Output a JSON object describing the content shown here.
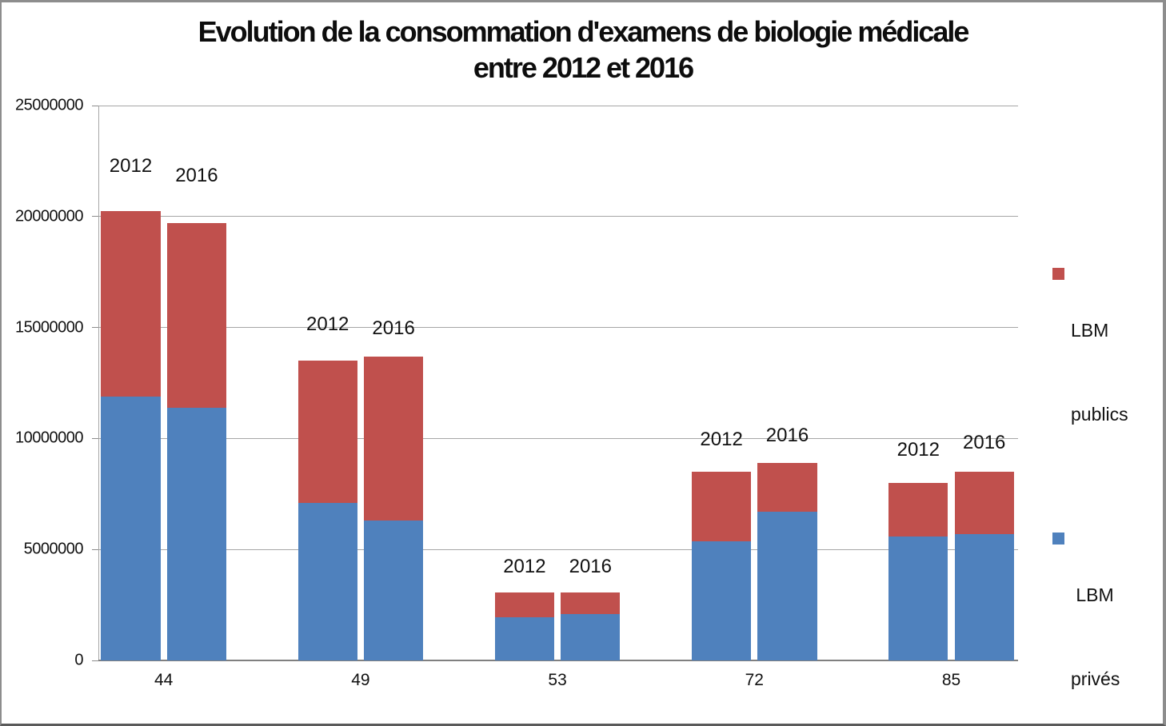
{
  "title": {
    "line1": "Evolution de la consommation d'examens de biologie médicale",
    "line2": "entre 2012 et 2016"
  },
  "legend": {
    "position": "right",
    "items": [
      {
        "series": "LBM publics",
        "line1": "LBM",
        "line2": "publics",
        "color": "#C0504D"
      },
      {
        "series": "LBM privés",
        "line1": " LBM",
        "line2": "privés",
        "color": "#4F81BD"
      }
    ]
  },
  "chart_data": {
    "type": "bar",
    "stacked": true,
    "title": "Evolution de la consommation d'examens de biologie médicale entre 2012 et 2016",
    "categories": [
      "44",
      "49",
      "53",
      "72",
      "85"
    ],
    "bar_year_labels": [
      "2012",
      "2016"
    ],
    "series": [
      {
        "name": "LBM privés",
        "color": "#4F81BD",
        "year": {
          "2012": [
            11900000,
            7100000,
            1950000,
            5350000,
            5600000
          ],
          "2016": [
            11400000,
            6300000,
            2100000,
            6700000,
            5700000
          ]
        }
      },
      {
        "name": "LBM publics",
        "color": "#C0504D",
        "year": {
          "2012": [
            8350000,
            6400000,
            1100000,
            3150000,
            2400000
          ],
          "2016": [
            8300000,
            7400000,
            950000,
            2200000,
            2800000
          ]
        }
      }
    ],
    "stack_totals": {
      "2012": [
        20250000,
        13500000,
        3050000,
        8500000,
        8000000
      ],
      "2016": [
        19700000,
        13700000,
        3050000,
        8900000,
        8500000
      ]
    },
    "y_axis": {
      "min": 0,
      "max": 25000000,
      "tick_step": 5000000,
      "tick_labels": [
        "0",
        "5000000",
        "10000000",
        "15000000",
        "20000000",
        "25000000"
      ]
    },
    "grid": true,
    "legend_position": "right",
    "colors": {
      "lbm_publics": "#C0504D",
      "lbm_prives": "#4F81BD"
    }
  }
}
